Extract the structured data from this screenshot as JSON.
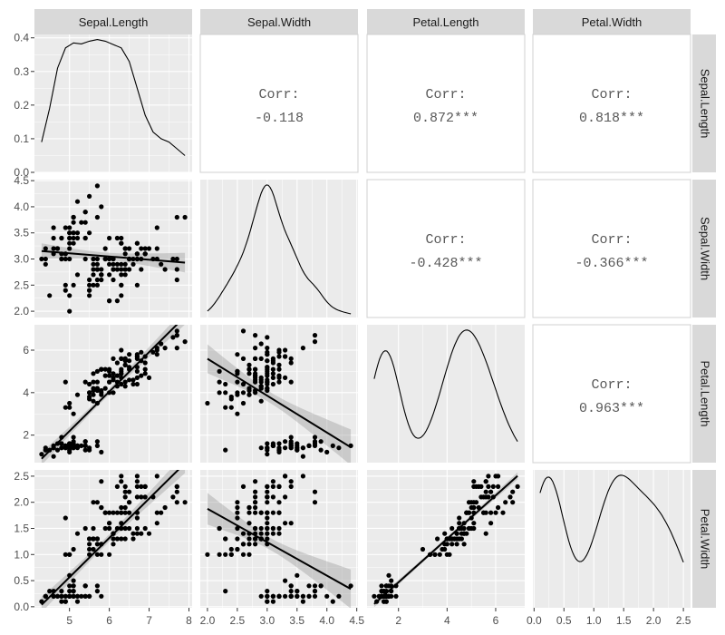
{
  "chart_data": {
    "type": "scatter_matrix",
    "variables": [
      "Sepal.Length",
      "Sepal.Width",
      "Petal.Length",
      "Petal.Width"
    ],
    "ranges": [
      [
        4.3,
        7.9
      ],
      [
        2.0,
        4.4
      ],
      [
        1.0,
        6.9
      ],
      [
        0.1,
        2.5
      ]
    ],
    "x_ticks": [
      [
        5,
        6,
        7,
        8
      ],
      [
        2.0,
        2.5,
        3.0,
        3.5,
        4.0,
        4.5
      ],
      [
        2,
        4,
        6
      ],
      [
        0.0,
        0.5,
        1.0,
        1.5,
        2.0,
        2.5
      ]
    ],
    "x_tick_labels": [
      [
        "5",
        "6",
        "7",
        "8"
      ],
      [
        "2.0",
        "2.5",
        "3.0",
        "3.5",
        "4.0",
        "4.5"
      ],
      [
        "2",
        "4",
        "6"
      ],
      [
        "0.0",
        "0.5",
        "1.0",
        "1.5",
        "2.0",
        "2.5"
      ]
    ],
    "y_ticks": [
      [
        0.0,
        0.1,
        0.2,
        0.3,
        0.4
      ],
      [
        2.0,
        2.5,
        3.0,
        3.5,
        4.0,
        4.5
      ],
      [
        2,
        4,
        6
      ],
      [
        0.0,
        0.5,
        1.0,
        1.5,
        2.0,
        2.5
      ]
    ],
    "y_tick_labels": [
      [
        "0.0",
        "0.1",
        "0.2",
        "0.3",
        "0.4"
      ],
      [
        "2.0",
        "2.5",
        "3.0",
        "3.5",
        "4.0",
        "4.5"
      ],
      [
        "2",
        "4",
        "6"
      ],
      [
        "0.0",
        "0.5",
        "1.0",
        "1.5",
        "2.0",
        "2.5"
      ]
    ],
    "density_ylim": [
      0.0,
      0.41
    ],
    "correlations": [
      {
        "row": 0,
        "col": 1,
        "label": "Corr:",
        "value": "-0.118"
      },
      {
        "row": 0,
        "col": 2,
        "label": "Corr:",
        "value": "0.872***"
      },
      {
        "row": 0,
        "col": 3,
        "label": "Corr:",
        "value": "0.818***"
      },
      {
        "row": 1,
        "col": 2,
        "label": "Corr:",
        "value": "-0.428***"
      },
      {
        "row": 1,
        "col": 3,
        "label": "Corr:",
        "value": "-0.366***"
      },
      {
        "row": 2,
        "col": 3,
        "label": "Corr:",
        "value": "0.963***"
      }
    ],
    "sepal_length_density": [
      [
        4.3,
        0.09
      ],
      [
        4.5,
        0.19
      ],
      [
        4.7,
        0.31
      ],
      [
        4.9,
        0.37
      ],
      [
        5.1,
        0.385
      ],
      [
        5.3,
        0.382
      ],
      [
        5.5,
        0.39
      ],
      [
        5.7,
        0.395
      ],
      [
        5.9,
        0.39
      ],
      [
        6.1,
        0.38
      ],
      [
        6.3,
        0.37
      ],
      [
        6.5,
        0.33
      ],
      [
        6.7,
        0.25
      ],
      [
        6.9,
        0.17
      ],
      [
        7.1,
        0.12
      ],
      [
        7.3,
        0.1
      ],
      [
        7.5,
        0.09
      ],
      [
        7.7,
        0.07
      ],
      [
        7.9,
        0.05
      ]
    ],
    "iris": [
      [
        5.1,
        3.5,
        1.4,
        0.2
      ],
      [
        4.9,
        3.0,
        1.4,
        0.2
      ],
      [
        4.7,
        3.2,
        1.3,
        0.2
      ],
      [
        4.6,
        3.1,
        1.5,
        0.2
      ],
      [
        5.0,
        3.6,
        1.4,
        0.2
      ],
      [
        5.4,
        3.9,
        1.7,
        0.4
      ],
      [
        4.6,
        3.4,
        1.4,
        0.3
      ],
      [
        5.0,
        3.4,
        1.5,
        0.2
      ],
      [
        4.4,
        2.9,
        1.4,
        0.2
      ],
      [
        4.9,
        3.1,
        1.5,
        0.1
      ],
      [
        5.4,
        3.7,
        1.5,
        0.2
      ],
      [
        4.8,
        3.4,
        1.6,
        0.2
      ],
      [
        4.8,
        3.0,
        1.4,
        0.1
      ],
      [
        4.3,
        3.0,
        1.1,
        0.1
      ],
      [
        5.8,
        4.0,
        1.2,
        0.2
      ],
      [
        5.7,
        4.4,
        1.5,
        0.4
      ],
      [
        5.4,
        3.9,
        1.3,
        0.4
      ],
      [
        5.1,
        3.5,
        1.4,
        0.3
      ],
      [
        5.7,
        3.8,
        1.7,
        0.3
      ],
      [
        5.1,
        3.8,
        1.5,
        0.3
      ],
      [
        5.4,
        3.4,
        1.7,
        0.2
      ],
      [
        5.1,
        3.7,
        1.5,
        0.4
      ],
      [
        4.6,
        3.6,
        1.0,
        0.2
      ],
      [
        5.1,
        3.3,
        1.7,
        0.5
      ],
      [
        4.8,
        3.4,
        1.9,
        0.2
      ],
      [
        5.0,
        3.0,
        1.6,
        0.2
      ],
      [
        5.0,
        3.4,
        1.6,
        0.4
      ],
      [
        5.2,
        3.5,
        1.5,
        0.2
      ],
      [
        5.2,
        3.4,
        1.4,
        0.2
      ],
      [
        4.7,
        3.2,
        1.6,
        0.2
      ],
      [
        4.8,
        3.1,
        1.6,
        0.2
      ],
      [
        5.4,
        3.4,
        1.5,
        0.4
      ],
      [
        5.2,
        4.1,
        1.5,
        0.1
      ],
      [
        5.5,
        4.2,
        1.4,
        0.2
      ],
      [
        4.9,
        3.1,
        1.5,
        0.2
      ],
      [
        5.0,
        3.2,
        1.2,
        0.2
      ],
      [
        5.5,
        3.5,
        1.3,
        0.2
      ],
      [
        4.9,
        3.6,
        1.4,
        0.1
      ],
      [
        4.4,
        3.0,
        1.3,
        0.2
      ],
      [
        5.1,
        3.4,
        1.5,
        0.2
      ],
      [
        5.0,
        3.5,
        1.3,
        0.3
      ],
      [
        4.5,
        2.3,
        1.3,
        0.3
      ],
      [
        4.4,
        3.2,
        1.3,
        0.2
      ],
      [
        5.0,
        3.5,
        1.6,
        0.6
      ],
      [
        5.1,
        3.8,
        1.9,
        0.4
      ],
      [
        4.8,
        3.0,
        1.4,
        0.3
      ],
      [
        5.1,
        3.8,
        1.6,
        0.2
      ],
      [
        4.6,
        3.2,
        1.4,
        0.2
      ],
      [
        5.3,
        3.7,
        1.5,
        0.2
      ],
      [
        5.0,
        3.3,
        1.4,
        0.2
      ],
      [
        7.0,
        3.2,
        4.7,
        1.4
      ],
      [
        6.4,
        3.2,
        4.5,
        1.5
      ],
      [
        6.9,
        3.1,
        4.9,
        1.5
      ],
      [
        5.5,
        2.3,
        4.0,
        1.3
      ],
      [
        6.5,
        2.8,
        4.6,
        1.5
      ],
      [
        5.7,
        2.8,
        4.5,
        1.3
      ],
      [
        6.3,
        3.3,
        4.7,
        1.6
      ],
      [
        4.9,
        2.4,
        3.3,
        1.0
      ],
      [
        6.6,
        2.9,
        4.6,
        1.3
      ],
      [
        5.2,
        2.7,
        3.9,
        1.4
      ],
      [
        5.0,
        2.0,
        3.5,
        1.0
      ],
      [
        5.9,
        3.0,
        4.2,
        1.5
      ],
      [
        6.0,
        2.2,
        4.0,
        1.0
      ],
      [
        6.1,
        2.9,
        4.7,
        1.4
      ],
      [
        5.6,
        2.9,
        3.6,
        1.3
      ],
      [
        6.7,
        3.1,
        4.4,
        1.4
      ],
      [
        5.6,
        3.0,
        4.5,
        1.5
      ],
      [
        5.8,
        2.7,
        4.1,
        1.0
      ],
      [
        6.2,
        2.2,
        4.5,
        1.5
      ],
      [
        5.6,
        2.5,
        3.9,
        1.1
      ],
      [
        5.9,
        3.2,
        4.8,
        1.8
      ],
      [
        6.1,
        2.8,
        4.0,
        1.3
      ],
      [
        6.3,
        2.5,
        4.9,
        1.5
      ],
      [
        6.1,
        2.8,
        4.7,
        1.2
      ],
      [
        6.4,
        2.9,
        4.3,
        1.3
      ],
      [
        6.6,
        3.0,
        4.4,
        1.4
      ],
      [
        6.8,
        2.8,
        4.8,
        1.4
      ],
      [
        6.7,
        3.0,
        5.0,
        1.7
      ],
      [
        6.0,
        2.9,
        4.5,
        1.5
      ],
      [
        5.7,
        2.6,
        3.5,
        1.0
      ],
      [
        5.5,
        2.4,
        3.8,
        1.1
      ],
      [
        5.5,
        2.4,
        3.7,
        1.0
      ],
      [
        5.8,
        2.7,
        3.9,
        1.2
      ],
      [
        6.0,
        2.7,
        5.1,
        1.6
      ],
      [
        5.4,
        3.0,
        4.5,
        1.5
      ],
      [
        6.0,
        3.4,
        4.5,
        1.6
      ],
      [
        6.7,
        3.1,
        4.7,
        1.5
      ],
      [
        6.3,
        2.3,
        4.4,
        1.3
      ],
      [
        5.6,
        3.0,
        4.1,
        1.3
      ],
      [
        5.5,
        2.5,
        4.0,
        1.3
      ],
      [
        5.5,
        2.6,
        4.4,
        1.2
      ],
      [
        6.1,
        3.0,
        4.6,
        1.4
      ],
      [
        5.8,
        2.6,
        4.0,
        1.2
      ],
      [
        5.0,
        2.3,
        3.3,
        1.0
      ],
      [
        5.6,
        2.7,
        4.2,
        1.3
      ],
      [
        5.7,
        3.0,
        4.2,
        1.2
      ],
      [
        5.7,
        2.9,
        4.2,
        1.3
      ],
      [
        6.2,
        2.9,
        4.3,
        1.3
      ],
      [
        5.1,
        2.5,
        3.0,
        1.1
      ],
      [
        5.7,
        2.8,
        4.1,
        1.3
      ],
      [
        6.3,
        3.3,
        6.0,
        2.5
      ],
      [
        5.8,
        2.7,
        5.1,
        1.9
      ],
      [
        7.1,
        3.0,
        5.9,
        2.1
      ],
      [
        6.3,
        2.9,
        5.6,
        1.8
      ],
      [
        6.5,
        3.0,
        5.8,
        2.2
      ],
      [
        7.6,
        3.0,
        6.6,
        2.1
      ],
      [
        4.9,
        2.5,
        4.5,
        1.7
      ],
      [
        7.3,
        2.9,
        6.3,
        1.8
      ],
      [
        6.7,
        2.5,
        5.8,
        1.8
      ],
      [
        7.2,
        3.6,
        6.1,
        2.5
      ],
      [
        6.5,
        3.2,
        5.1,
        2.0
      ],
      [
        6.4,
        2.7,
        5.3,
        1.9
      ],
      [
        6.8,
        3.0,
        5.5,
        2.1
      ],
      [
        5.7,
        2.5,
        5.0,
        2.0
      ],
      [
        5.8,
        2.8,
        5.1,
        2.4
      ],
      [
        6.4,
        3.2,
        5.3,
        2.3
      ],
      [
        6.5,
        3.0,
        5.5,
        1.8
      ],
      [
        7.7,
        3.8,
        6.7,
        2.2
      ],
      [
        7.7,
        2.6,
        6.9,
        2.3
      ],
      [
        6.0,
        2.2,
        5.0,
        1.5
      ],
      [
        6.9,
        3.2,
        5.7,
        2.3
      ],
      [
        5.6,
        2.8,
        4.9,
        2.0
      ],
      [
        7.7,
        2.8,
        6.7,
        2.0
      ],
      [
        6.3,
        2.7,
        4.9,
        1.8
      ],
      [
        6.7,
        3.3,
        5.7,
        2.1
      ],
      [
        7.2,
        3.2,
        6.0,
        1.8
      ],
      [
        6.2,
        2.8,
        4.8,
        1.8
      ],
      [
        6.1,
        3.0,
        4.9,
        1.8
      ],
      [
        6.4,
        2.8,
        5.6,
        2.1
      ],
      [
        7.2,
        3.0,
        5.8,
        1.6
      ],
      [
        7.4,
        2.8,
        6.1,
        1.9
      ],
      [
        7.9,
        3.8,
        6.4,
        2.0
      ],
      [
        6.4,
        2.8,
        5.6,
        2.2
      ],
      [
        6.3,
        2.8,
        5.1,
        1.5
      ],
      [
        6.1,
        2.6,
        5.6,
        1.4
      ],
      [
        7.7,
        3.0,
        6.1,
        2.3
      ],
      [
        6.3,
        3.4,
        5.6,
        2.4
      ],
      [
        6.4,
        3.1,
        5.5,
        1.8
      ],
      [
        6.0,
        3.0,
        4.8,
        1.8
      ],
      [
        6.9,
        3.1,
        5.4,
        2.1
      ],
      [
        6.7,
        3.1,
        5.6,
        2.4
      ],
      [
        6.9,
        3.1,
        5.1,
        2.3
      ],
      [
        5.8,
        2.7,
        5.1,
        1.9
      ],
      [
        6.8,
        3.2,
        5.9,
        2.3
      ],
      [
        6.7,
        3.3,
        5.7,
        2.5
      ],
      [
        6.7,
        3.0,
        5.2,
        2.3
      ],
      [
        6.3,
        2.5,
        5.0,
        1.9
      ],
      [
        6.5,
        3.0,
        5.2,
        2.0
      ],
      [
        6.2,
        3.4,
        5.4,
        2.3
      ],
      [
        5.9,
        3.0,
        5.1,
        1.8
      ]
    ]
  }
}
